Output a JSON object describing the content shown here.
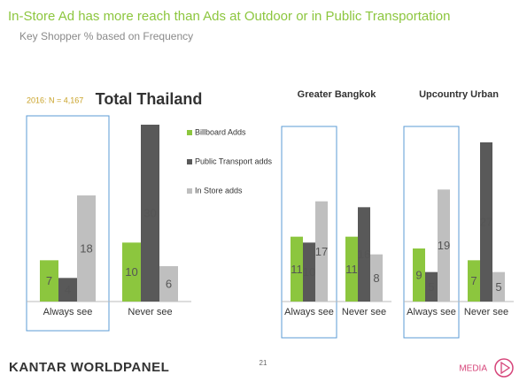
{
  "header": {
    "title": "In-Store Ad has more reach than Ads at Outdoor or in Public Transportation",
    "subtitle": "Key Shopper %  based on Frequency",
    "note": "2016: N = 4,167"
  },
  "footer": {
    "brand": "KANTAR WORLDPANEL",
    "page": "21",
    "section": "MEDIA"
  },
  "chart_data": [
    {
      "type": "bar",
      "title": "Total Thailand",
      "categories": [
        "Always see",
        "Never see"
      ],
      "ylim": [
        0,
        30
      ],
      "series": [
        {
          "name": "Billboard Adds",
          "color": "#8cc63e",
          "values": [
            7,
            10
          ]
        },
        {
          "name": "Public Transport adds",
          "color": "#595959",
          "values": [
            4,
            30
          ]
        },
        {
          "name": "In Store adds",
          "color": "#bfbfbf",
          "values": [
            18,
            6
          ]
        }
      ]
    },
    {
      "type": "bar",
      "title": "Greater Bangkok",
      "categories": [
        "Always see",
        "Never see"
      ],
      "ylim": [
        0,
        30
      ],
      "series": [
        {
          "color": "#8cc63e",
          "values": [
            11,
            11
          ]
        },
        {
          "color": "#595959",
          "values": [
            10,
            16
          ]
        },
        {
          "color": "#bfbfbf",
          "values": [
            17,
            8
          ]
        }
      ]
    },
    {
      "type": "bar",
      "title": "Upcountry Urban",
      "categories": [
        "Always see",
        "Never see"
      ],
      "ylim": [
        0,
        30
      ],
      "series": [
        {
          "color": "#8cc63e",
          "values": [
            9,
            7
          ]
        },
        {
          "color": "#595959",
          "values": [
            5,
            27
          ]
        },
        {
          "color": "#bfbfbf",
          "values": [
            19,
            5
          ]
        }
      ]
    }
  ]
}
